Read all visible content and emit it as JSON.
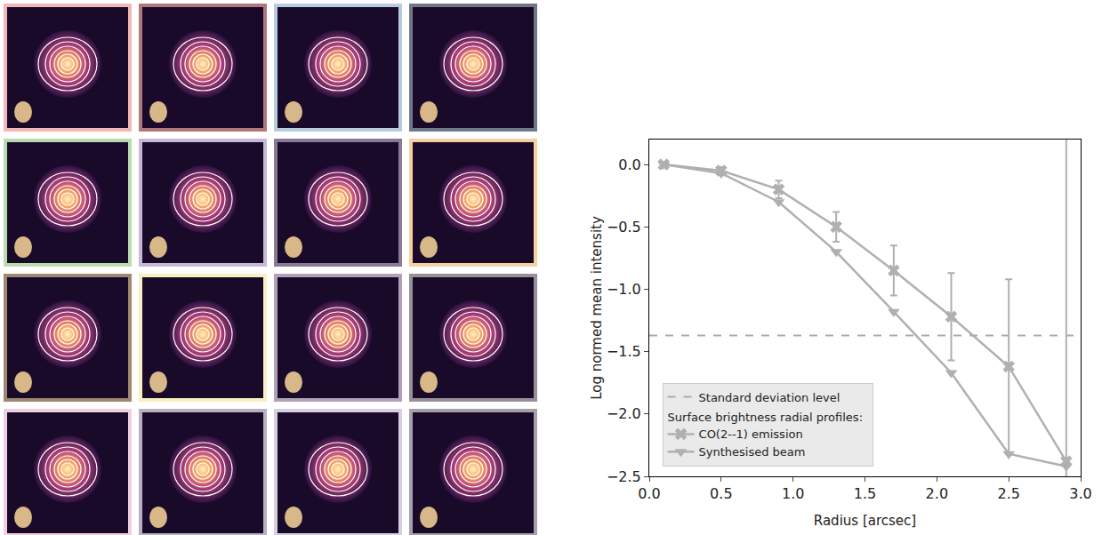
{
  "chart_data": {
    "type": "line",
    "xlabel": "Radius [arcsec]",
    "ylabel": "Log normed mean intensity",
    "xlim": [
      0,
      3.0
    ],
    "ylim": [
      -2.5,
      0.2
    ],
    "xticks": [
      {
        "value": 0,
        "label": "0.0"
      },
      {
        "value": 0.5,
        "label": "0.5"
      },
      {
        "value": 1.0,
        "label": "1.0"
      },
      {
        "value": 1.5,
        "label": "1.5"
      },
      {
        "value": 2.0,
        "label": "2.0"
      },
      {
        "value": 2.5,
        "label": "2.5"
      },
      {
        "value": 3.0,
        "label": "3.0"
      }
    ],
    "yticks": [
      {
        "value": -2.5,
        "label": "−2.5"
      },
      {
        "value": -2.0,
        "label": "−2.0"
      },
      {
        "value": -1.5,
        "label": "−1.5"
      },
      {
        "value": -1.0,
        "label": "−1.0"
      },
      {
        "value": -0.5,
        "label": "−0.5"
      },
      {
        "value": 0.0,
        "label": "0.0"
      }
    ],
    "x": [
      0.1,
      0.5,
      0.9,
      1.3,
      1.7,
      2.1,
      2.5,
      2.9
    ],
    "series": [
      {
        "name": "CO(2--1) emission",
        "color": "#b0b0b0",
        "marker": "x",
        "values": [
          0.0,
          -0.05,
          -0.2,
          -0.5,
          -0.85,
          -1.22,
          -1.62,
          -2.38
        ],
        "errors": [
          0.02,
          0.03,
          0.07,
          0.12,
          0.2,
          0.35,
          0.7,
          3.0
        ]
      },
      {
        "name": "Synthesised beam",
        "color": "#b0b0b0",
        "marker": "triangle-down",
        "values": [
          0.0,
          -0.07,
          -0.3,
          -0.7,
          -1.18,
          -1.67,
          -2.32,
          -2.42
        ]
      }
    ],
    "hline": {
      "name": "Standard deviation level",
      "value": -1.37,
      "color": "#b0a8b0",
      "line_style": "dash"
    },
    "legend_heading": "Surface brightness radial profiles:",
    "legend": "lower left"
  }
}
